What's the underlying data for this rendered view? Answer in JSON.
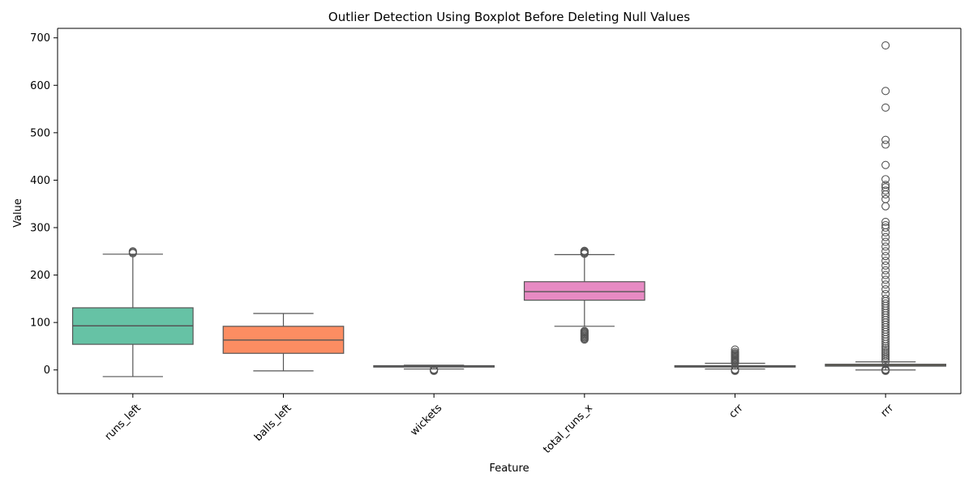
{
  "chart_data": {
    "type": "boxplot",
    "title": "Outlier Detection Using Boxplot Before Deleting Null Values",
    "xlabel": "Feature",
    "ylabel": "Value",
    "ylim": [
      -50,
      720
    ],
    "yticks": [
      0,
      100,
      200,
      300,
      400,
      500,
      600,
      700
    ],
    "grid": false,
    "categories": [
      "runs_left",
      "balls_left",
      "wickets",
      "total_runs_x",
      "crr",
      "rrr"
    ],
    "boxes": [
      {
        "name": "runs_left",
        "color": "#66c2a5",
        "whisker_low": -14,
        "q1": 54,
        "median": 93,
        "q3": 131,
        "whisker_high": 244,
        "outliers": [
          246,
          248,
          250
        ]
      },
      {
        "name": "balls_left",
        "color": "#fc8d62",
        "whisker_low": -2,
        "q1": 35,
        "median": 63,
        "q3": 92,
        "whisker_high": 119,
        "outliers": []
      },
      {
        "name": "wickets",
        "color": "#8da0cb",
        "whisker_low": 2,
        "q1": 6,
        "median": 8,
        "q3": 9,
        "whisker_high": 10,
        "outliers": [
          -2,
          -1,
          0,
          1
        ]
      },
      {
        "name": "total_runs_x",
        "color": "#e78ac3",
        "whisker_low": 92,
        "q1": 147,
        "median": 165,
        "q3": 186,
        "whisker_high": 243,
        "outliers": [
          64,
          66,
          68,
          70,
          72,
          74,
          76,
          78,
          80,
          82,
          245,
          247,
          248,
          250,
          251
        ]
      },
      {
        "name": "crr",
        "color": "#a6d854",
        "whisker_low": 2,
        "q1": 6,
        "median": 7,
        "q3": 9,
        "whisker_high": 14,
        "outliers": [
          -2,
          -1,
          0,
          1,
          15,
          17,
          19,
          21,
          23,
          25,
          27,
          29,
          31,
          33,
          35,
          38,
          43
        ]
      },
      {
        "name": "rrr",
        "color": "#ffd92f",
        "whisker_low": 0,
        "q1": 8,
        "median": 10,
        "q3": 12,
        "whisker_high": 17,
        "outliers": [
          -2,
          -1,
          0,
          1,
          18,
          22,
          26,
          30,
          34,
          38,
          42,
          46,
          50,
          55,
          60,
          65,
          70,
          75,
          80,
          85,
          90,
          95,
          100,
          105,
          110,
          115,
          120,
          125,
          130,
          135,
          140,
          145,
          150,
          160,
          170,
          180,
          190,
          200,
          210,
          220,
          230,
          240,
          250,
          260,
          270,
          280,
          290,
          300,
          305,
          312,
          345,
          360,
          370,
          378,
          385,
          390,
          402,
          432,
          475,
          485,
          553,
          588,
          684
        ]
      }
    ]
  }
}
